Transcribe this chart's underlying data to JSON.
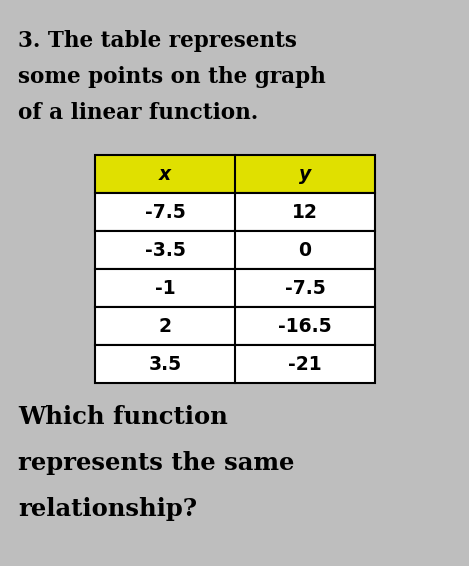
{
  "title_line1": "3. The table represents",
  "title_line2": "some points on the graph",
  "title_line3": "of a linear function.",
  "col_headers": [
    "x",
    "y"
  ],
  "table_data": [
    [
      "-7.5",
      "12"
    ],
    [
      "-3.5",
      "0"
    ],
    [
      "-1",
      "-7.5"
    ],
    [
      "2",
      "-16.5"
    ],
    [
      "3.5",
      "-21"
    ]
  ],
  "footer_line1": "Which function",
  "footer_line2": "represents the same",
  "footer_line3": "relationship?",
  "header_bg_color": "#e0e000",
  "table_border_color": "#000000",
  "bg_color": "#bebebe",
  "text_color": "#000000",
  "title_fontsize": 15.5,
  "table_fontsize": 13.5,
  "footer_fontsize": 17.5
}
